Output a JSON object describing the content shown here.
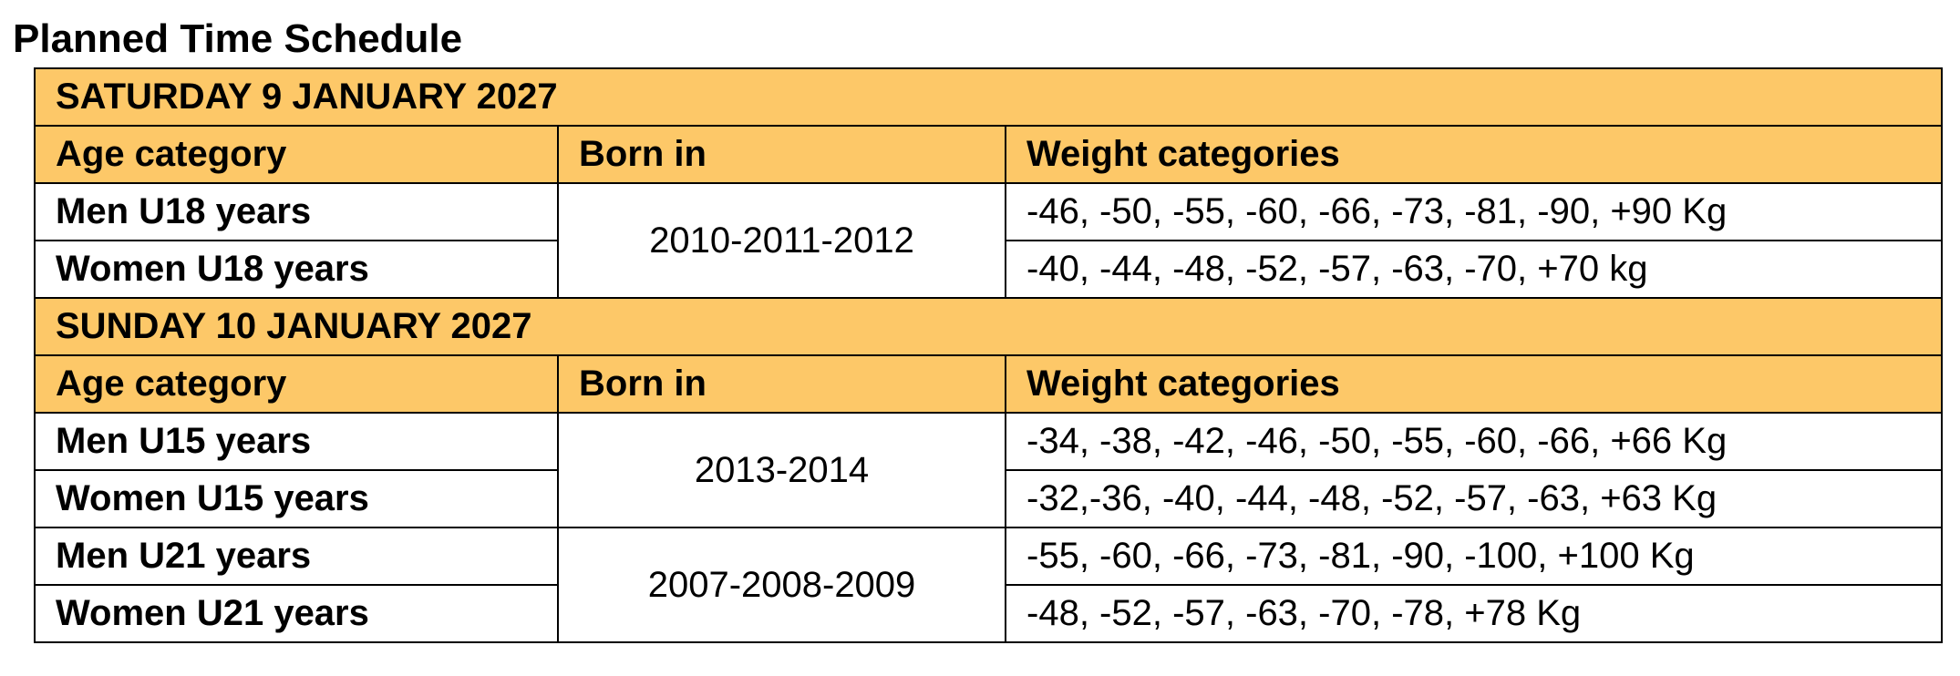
{
  "title": "Planned Time Schedule",
  "sections": [
    {
      "day": "SATURDAY 9 JANUARY 2027",
      "header": [
        "Age category",
        "Born in",
        "Weight categories"
      ],
      "groups": [
        {
          "born": "2010-2011-2012",
          "rows": [
            {
              "age": "Men U18 years",
              "weights": "-46, -50, -55, -60, -66, -73, -81, -90, +90 Kg"
            },
            {
              "age": "Women U18 years",
              "weights": "-40, -44, -48, -52, -57, -63, -70, +70 kg"
            }
          ]
        }
      ]
    },
    {
      "day": "SUNDAY 10 JANUARY 2027",
      "header": [
        "Age category",
        "Born in",
        "Weight categories"
      ],
      "groups": [
        {
          "born": "2013-2014",
          "rows": [
            {
              "age": "Men U15 years",
              "weights": "-34, -38, -42, -46, -50, -55, -60, -66, +66 Kg"
            },
            {
              "age": "Women U15 years",
              "weights": "-32,-36, -40, -44, -48, -52, -57, -63, +63 Kg"
            }
          ]
        },
        {
          "born": "2007-2008-2009",
          "rows": [
            {
              "age": "Men U21 years",
              "weights": "-55, -60, -66, -73, -81, -90, -100, +100 Kg"
            },
            {
              "age": "Women U21 years",
              "weights": "-48, -52, -57, -63, -70, -78, +78 Kg"
            }
          ]
        }
      ]
    }
  ]
}
